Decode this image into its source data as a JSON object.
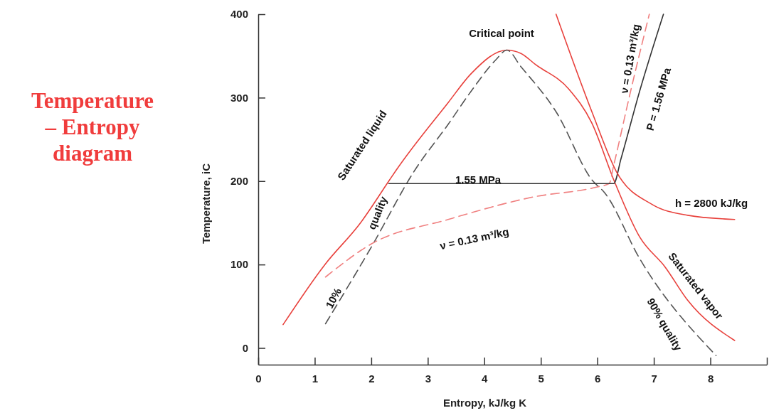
{
  "chart_data": {
    "type": "line",
    "title": "Temperature – Entropy diagram",
    "xlabel": "Entropy, kJ/kg K",
    "ylabel": "Temperature, iC",
    "xlim": [
      0,
      9
    ],
    "ylim": [
      -20,
      400
    ],
    "xticks": [
      0,
      1,
      2,
      3,
      4,
      5,
      6,
      7,
      8,
      {
        "value": 9,
        "label": null
      }
    ],
    "yticks": [
      0,
      100,
      200,
      300,
      400
    ],
    "grid": false,
    "marker": "none",
    "series": [
      {
        "color": "#e8413c",
        "line_style": "solid",
        "x": [
          0.44,
          1.18,
          1.81,
          2.31,
          2.44,
          3.36,
          3.77,
          4.4,
          4.65,
          4.9,
          5.5,
          5.9,
          6.3,
          6.75,
          7.2,
          7.6,
          8.43
        ],
        "values": [
          28,
          100,
          150,
          200,
          213,
          294,
          329,
          357,
          353,
          340,
          310,
          270,
          200,
          133,
          97,
          57,
          9
        ]
      },
      {
        "color": "#555555",
        "line_style": "dashed",
        "x": [
          1.19,
          2.01,
          2.77,
          3.36,
          3.77,
          4.2,
          4.4,
          4.65,
          5.28,
          5.91,
          6.13,
          6.75,
          8.1
        ],
        "values": [
          29,
          122,
          213,
          268,
          308,
          345,
          357,
          337,
          282,
          201,
          186,
          107,
          -9
        ]
      },
      {
        "color": "#f08080",
        "line_style": "dashed",
        "x": [
          1.19,
          2.01,
          3.36,
          4.87,
          6.0,
          6.21,
          6.29,
          6.59,
          6.92
        ],
        "values": [
          85,
          125,
          154,
          181,
          193,
          197,
          219,
          308,
          400
        ]
      },
      {
        "color": "#333333",
        "line_style": "solid",
        "x": [
          2.31,
          6.29,
          6.42,
          6.75,
          7.17
        ],
        "values": [
          197,
          197,
          227,
          308,
          400
        ]
      },
      {
        "color": "#e8413c",
        "line_style": "solid",
        "x": [
          5.27,
          5.91,
          6.34,
          6.97,
          7.6,
          8.43
        ],
        "values": [
          400,
          282,
          211,
          172,
          159,
          154
        ]
      }
    ],
    "annotations": [
      "Critical point",
      "1.55 MPa",
      "Saturated liquid",
      "quality",
      "10%",
      "ν = 0.13 m³/kg",
      "ν = 0.13 m³/kg",
      "P = 1.56 MPa",
      "h = 2800 kJ/kg",
      "Saturated vapor",
      "90% quality"
    ]
  }
}
